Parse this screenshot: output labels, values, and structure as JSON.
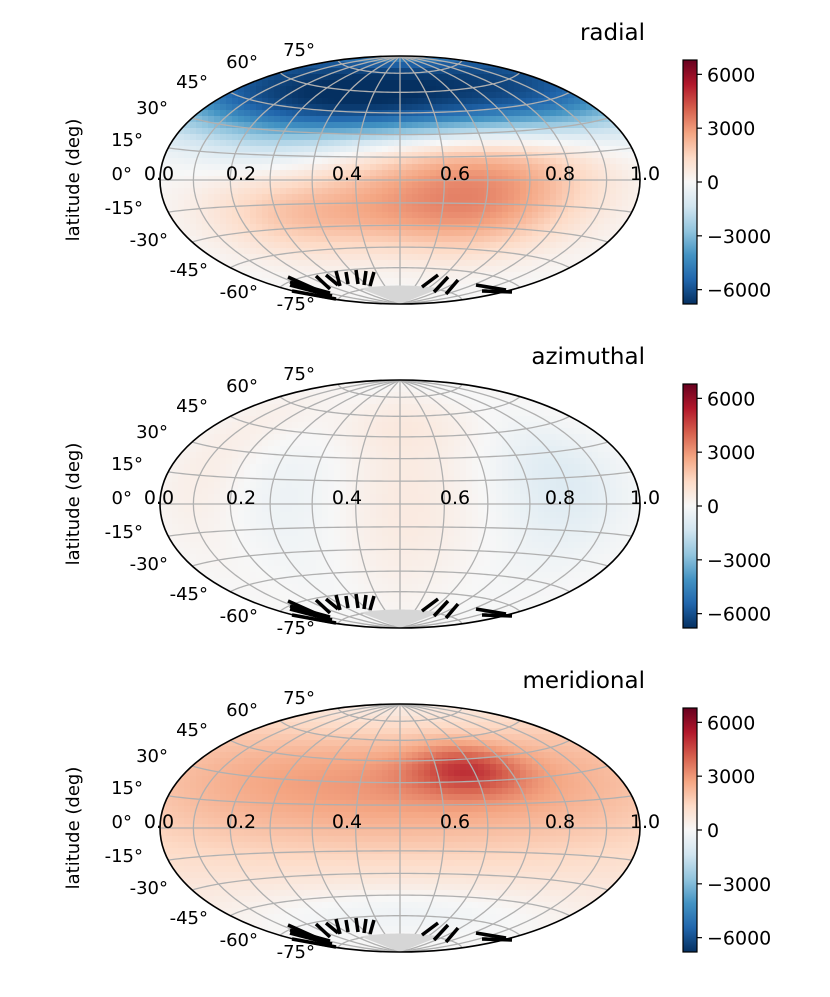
{
  "chart_data": [
    {
      "type": "heatmap",
      "projection": "hammer",
      "title": "radial",
      "ylabel": "latitude (deg)",
      "x_tick_labels": [
        "0.0",
        "0.2",
        "0.4",
        "0.6",
        "0.8",
        "1.0"
      ],
      "lat_tick_labels": [
        "75°",
        "60°",
        "45°",
        "30°",
        "15°",
        "0°",
        "-15°",
        "-30°",
        "-45°",
        "-60°",
        "-75°"
      ],
      "colorbar": {
        "min": -6800,
        "max": 6800,
        "ticks": [
          6000,
          3000,
          0,
          -3000,
          -6000
        ],
        "tick_labels": [
          "6000",
          "3000",
          "0",
          "−3000",
          "−6000"
        ],
        "cmap": "RdBu_r"
      },
      "features": [
        {
          "lat": 70,
          "lon_center": 0.5,
          "lat_width": 22,
          "lon_width": 0.8,
          "value": -6500
        },
        {
          "lat": 42,
          "lon_center": 0.5,
          "lat_width": 14,
          "lon_width": 0.8,
          "value": -3200
        },
        {
          "lat": 15,
          "lon_center": 0.25,
          "lat_width": 12,
          "lon_width": 0.12,
          "value": -700
        },
        {
          "lat": 8,
          "lon_center": 0.65,
          "lat_width": 28,
          "lon_width": 0.18,
          "value": 2600
        },
        {
          "lat": -22,
          "lon_center": 0.3,
          "lat_width": 20,
          "lon_width": 0.15,
          "value": 1800
        },
        {
          "lat": -25,
          "lon_center": 0.62,
          "lat_width": 20,
          "lon_width": 0.15,
          "value": 1600
        }
      ]
    },
    {
      "type": "heatmap",
      "projection": "hammer",
      "title": "azimuthal",
      "ylabel": "latitude (deg)",
      "x_tick_labels": [
        "0.0",
        "0.2",
        "0.4",
        "0.6",
        "0.8",
        "1.0"
      ],
      "lat_tick_labels": [
        "75°",
        "60°",
        "45°",
        "30°",
        "15°",
        "0°",
        "-15°",
        "-30°",
        "-45°",
        "-60°",
        "-75°"
      ],
      "colorbar": {
        "min": -6800,
        "max": 6800,
        "ticks": [
          6000,
          3000,
          0,
          -3000,
          -6000
        ],
        "tick_labels": [
          "6000",
          "3000",
          "0",
          "−3000",
          "−6000"
        ],
        "cmap": "RdBu_r"
      },
      "features": [
        {
          "lat": 0,
          "lon_center": 0.5,
          "lat_width": 45,
          "lon_width": 0.11,
          "value": 700
        },
        {
          "lat": 5,
          "lon_center": 0.3,
          "lat_width": 35,
          "lon_width": 0.1,
          "value": -500
        },
        {
          "lat": 12,
          "lon_center": 0.82,
          "lat_width": 30,
          "lon_width": 0.1,
          "value": -900
        },
        {
          "lat": 15,
          "lon_center": 0.1,
          "lat_width": 30,
          "lon_width": 0.08,
          "value": 500
        },
        {
          "lat": 55,
          "lon_center": 0.5,
          "lat_width": 15,
          "lon_width": 0.3,
          "value": 400
        }
      ]
    },
    {
      "type": "heatmap",
      "projection": "hammer",
      "title": "meridional",
      "ylabel": "latitude (deg)",
      "x_tick_labels": [
        "0.0",
        "0.2",
        "0.4",
        "0.6",
        "0.8",
        "1.0"
      ],
      "lat_tick_labels": [
        "75°",
        "60°",
        "45°",
        "30°",
        "15°",
        "0°",
        "-15°",
        "-30°",
        "-45°",
        "-60°",
        "-75°"
      ],
      "colorbar": {
        "min": -6800,
        "max": 6800,
        "ticks": [
          6000,
          3000,
          0,
          -3000,
          -6000
        ],
        "tick_labels": [
          "6000",
          "3000",
          "0",
          "−3000",
          "−6000"
        ],
        "cmap": "RdBu_r"
      },
      "features": [
        {
          "lat": 35,
          "lon_center": 0.5,
          "lat_width": 30,
          "lon_width": 0.6,
          "value": 2600
        },
        {
          "lat": 38,
          "lon_center": 0.65,
          "lat_width": 12,
          "lon_width": 0.09,
          "value": 2200
        },
        {
          "lat": -10,
          "lon_center": 0.5,
          "lat_width": 30,
          "lon_width": 0.6,
          "value": 1000
        },
        {
          "lat": -55,
          "lon_center": 0.5,
          "lat_width": 12,
          "lon_width": 0.3,
          "value": -600
        }
      ]
    }
  ]
}
